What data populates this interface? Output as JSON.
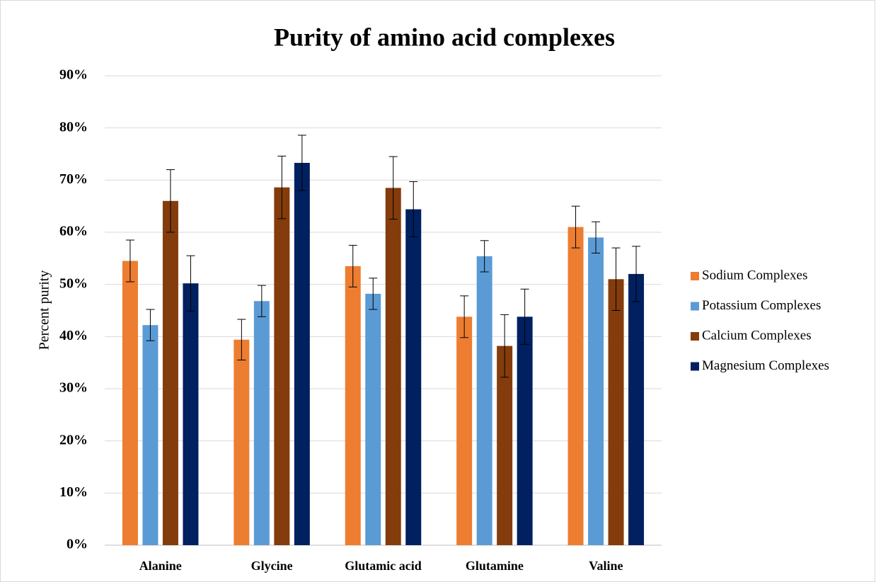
{
  "chart_data": {
    "type": "bar",
    "title": "Purity of amino acid complexes",
    "y_label": "Percent purity",
    "categories": [
      "Alanine",
      "Glycine",
      "Glutamic acid",
      "Glutamine",
      "Valine"
    ],
    "series": [
      {
        "name": "Sodium Complexes",
        "color": "#ed7d31",
        "values": [
          54.5,
          39.4,
          53.5,
          43.8,
          61
        ],
        "errors": [
          4,
          3.9,
          4,
          4,
          4
        ]
      },
      {
        "name": "Potassium Complexes",
        "color": "#5b9bd5",
        "values": [
          42.2,
          46.8,
          48.2,
          55.4,
          59
        ],
        "errors": [
          3,
          3,
          3,
          3,
          3
        ]
      },
      {
        "name": "Calcium Complexes",
        "color": "#843c0c",
        "values": [
          66,
          68.6,
          68.5,
          38.2,
          51
        ],
        "errors": [
          6,
          6,
          6,
          6,
          6
        ]
      },
      {
        "name": "Magnesium Complexes",
        "color": "#002060",
        "values": [
          50.2,
          73.3,
          64.4,
          43.8,
          52
        ],
        "errors": [
          5.3,
          5.3,
          5.3,
          5.3,
          5.3
        ]
      }
    ],
    "ylim": [
      0,
      90
    ],
    "yticks": [
      {
        "value": 0,
        "label": "0%"
      },
      {
        "value": 10,
        "label": "10%"
      },
      {
        "value": 20,
        "label": "20%"
      },
      {
        "value": 30,
        "label": "30%"
      },
      {
        "value": 40,
        "label": "40%"
      },
      {
        "value": 50,
        "label": "50%"
      },
      {
        "value": 60,
        "label": "60%"
      },
      {
        "value": 70,
        "label": "70%"
      },
      {
        "value": 80,
        "label": "80%"
      },
      {
        "value": 90,
        "label": "90%"
      }
    ],
    "grid": true,
    "legend": "right"
  }
}
